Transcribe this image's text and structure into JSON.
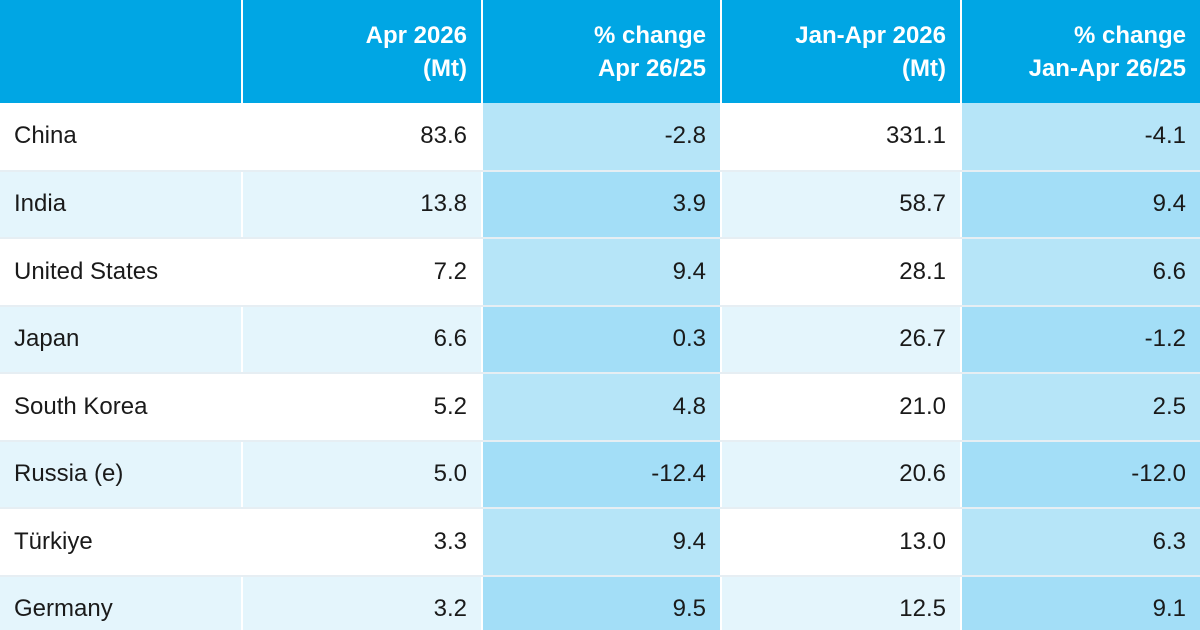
{
  "chart_data": {
    "type": "table",
    "columns": [
      "",
      "Apr 2026\n(Mt)",
      "% change\nApr 26/25",
      "Jan-Apr 2026\n(Mt)",
      "% change\nJan-Apr 26/25"
    ],
    "rows": [
      {
        "country": "China",
        "cells": [
          "83.6",
          "-2.8",
          "331.1",
          "-4.1"
        ]
      },
      {
        "country": "India",
        "cells": [
          "13.8",
          "3.9",
          "58.7",
          "9.4"
        ]
      },
      {
        "country": "United States",
        "cells": [
          "7.2",
          "9.4",
          "28.1",
          "6.6"
        ]
      },
      {
        "country": "Japan",
        "cells": [
          "6.6",
          "0.3",
          "26.7",
          "-1.2"
        ]
      },
      {
        "country": "South Korea",
        "cells": [
          "5.2",
          "4.8",
          "21.0",
          "2.5"
        ]
      },
      {
        "country": "Russia (e)",
        "cells": [
          "5.0",
          "-12.4",
          "20.6",
          "-12.0"
        ]
      },
      {
        "country": "Türkiye",
        "cells": [
          "3.3",
          "9.4",
          "13.0",
          "6.3"
        ]
      },
      {
        "country": "Germany",
        "cells": [
          "3.2",
          "9.5",
          "12.5",
          "9.1"
        ]
      }
    ]
  },
  "colors": {
    "header_bg": "#00a6e4",
    "header_text": "#ffffff",
    "row_light": "#ffffff",
    "row_tint": "#e4f5fc",
    "pct_light": "#b6e5f8",
    "pct_dark": "#a3def7"
  }
}
